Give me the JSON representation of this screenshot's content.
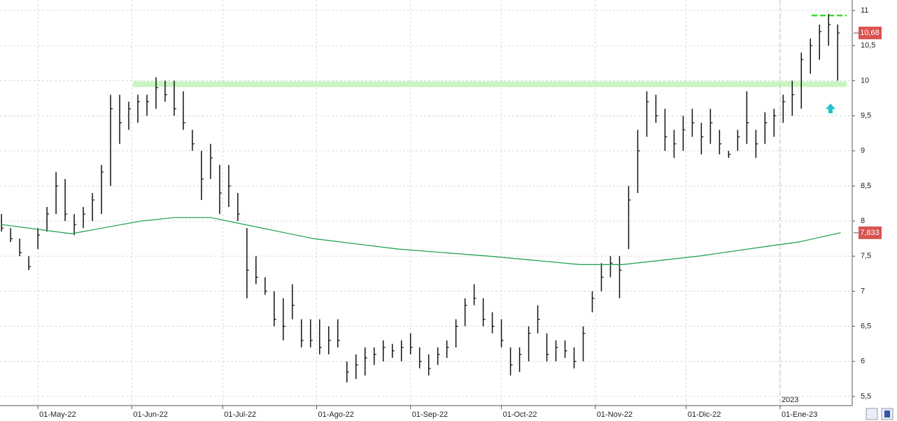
{
  "chart_data": {
    "type": "ohlc",
    "series": [
      {
        "color": "#111111",
        "x": [
          -12,
          -9,
          -6,
          -3,
          0,
          3,
          6,
          9,
          12,
          15,
          18,
          21,
          24,
          27,
          30,
          33,
          36,
          39,
          42,
          45,
          48,
          51,
          54,
          57,
          60,
          63,
          66,
          69,
          72,
          75,
          78,
          81,
          84,
          87,
          90,
          93,
          96,
          99,
          102,
          105,
          108,
          111,
          114,
          117,
          120,
          123,
          126,
          129,
          132,
          135,
          138,
          141,
          144,
          147,
          150,
          153,
          156,
          159,
          162,
          165,
          168,
          171,
          174,
          177,
          180,
          183,
          186,
          189,
          192,
          195,
          198,
          201,
          204,
          207,
          210,
          213,
          216,
          219,
          222,
          225,
          228,
          231,
          234,
          237,
          240,
          243,
          246,
          249,
          252,
          255,
          258,
          261,
          264
        ],
        "high": [
          8.1,
          7.9,
          7.75,
          7.5,
          7.9,
          8.2,
          8.7,
          8.6,
          8.1,
          8.2,
          8.4,
          8.8,
          9.8,
          9.8,
          9.7,
          9.8,
          9.8,
          10.05,
          10.0,
          10.0,
          9.85,
          9.3,
          9.0,
          9.1,
          8.8,
          8.8,
          8.4,
          7.9,
          7.5,
          7.2,
          7.0,
          6.9,
          7.1,
          6.6,
          6.6,
          6.6,
          6.5,
          6.6,
          6.0,
          6.1,
          6.2,
          6.2,
          6.3,
          6.25,
          6.3,
          6.4,
          6.2,
          6.1,
          6.2,
          6.3,
          6.6,
          6.9,
          7.1,
          6.9,
          6.7,
          6.6,
          6.2,
          6.2,
          6.5,
          6.8,
          6.4,
          6.3,
          6.3,
          6.2,
          6.5,
          7.0,
          7.4,
          7.5,
          7.5,
          8.5,
          9.3,
          9.85,
          9.8,
          9.6,
          9.3,
          9.5,
          9.6,
          9.4,
          9.6,
          9.3,
          9.0,
          9.3,
          9.85,
          9.3,
          9.55,
          9.6,
          9.8,
          10.0,
          10.4,
          10.6,
          10.8,
          10.95,
          10.8
        ],
        "low": [
          7.85,
          7.7,
          7.5,
          7.3,
          7.6,
          7.85,
          8.1,
          8.0,
          7.8,
          7.9,
          8.0,
          8.1,
          8.5,
          9.1,
          9.3,
          9.4,
          9.5,
          9.6,
          9.7,
          9.5,
          9.3,
          9.0,
          8.3,
          8.6,
          8.1,
          8.2,
          8.0,
          6.9,
          7.1,
          6.95,
          6.5,
          6.3,
          6.6,
          6.2,
          6.2,
          6.1,
          6.1,
          6.2,
          5.7,
          5.75,
          5.8,
          5.95,
          6.0,
          6.05,
          6.0,
          6.1,
          5.9,
          5.8,
          5.95,
          6.05,
          6.2,
          6.5,
          6.8,
          6.5,
          6.4,
          6.2,
          5.8,
          5.85,
          6.0,
          6.4,
          6.0,
          6.0,
          6.05,
          5.9,
          6.0,
          6.7,
          7.0,
          7.2,
          6.9,
          7.6,
          8.4,
          9.2,
          9.4,
          9.0,
          8.9,
          9.0,
          9.2,
          8.95,
          9.1,
          8.95,
          8.9,
          9.0,
          9.1,
          8.9,
          9.1,
          9.2,
          9.4,
          9.5,
          9.6,
          10.1,
          10.3,
          10.5,
          10.0
        ],
        "close": [
          7.9,
          7.75,
          7.55,
          7.35,
          7.8,
          8.1,
          8.5,
          8.1,
          7.95,
          8.1,
          8.3,
          8.7,
          9.6,
          9.4,
          9.6,
          9.7,
          9.7,
          9.9,
          9.8,
          9.6,
          9.4,
          9.1,
          8.6,
          8.9,
          8.4,
          8.5,
          8.1,
          7.3,
          7.2,
          7.0,
          6.6,
          6.5,
          6.8,
          6.3,
          6.3,
          6.2,
          6.3,
          6.3,
          5.85,
          5.95,
          6.05,
          6.1,
          6.2,
          6.15,
          6.2,
          6.2,
          6.0,
          5.9,
          6.1,
          6.2,
          6.5,
          6.8,
          6.9,
          6.6,
          6.5,
          6.3,
          5.95,
          6.1,
          6.4,
          6.6,
          6.1,
          6.2,
          6.15,
          6.0,
          6.4,
          6.9,
          7.2,
          7.4,
          7.3,
          8.3,
          9.0,
          9.7,
          9.5,
          9.2,
          9.1,
          9.3,
          9.4,
          9.2,
          9.4,
          9.1,
          8.95,
          9.2,
          9.4,
          9.1,
          9.4,
          9.5,
          9.7,
          9.8,
          10.3,
          10.5,
          10.7,
          10.8,
          10.68
        ]
      },
      {
        "color": "#2aa455",
        "x": [
          -12,
          11,
          34,
          45,
          57,
          91,
          119,
          149,
          179,
          193,
          218,
          244,
          251,
          265
        ],
        "values": [
          7.95,
          7.82,
          8.0,
          8.05,
          8.05,
          7.75,
          7.6,
          7.5,
          7.38,
          7.38,
          7.5,
          7.66,
          7.7,
          7.833
        ]
      }
    ],
    "xlim": [
      -12.5,
      268.8
    ],
    "xticks": [
      {
        "value": 0,
        "label": "01-May-22"
      },
      {
        "value": 31,
        "label": "01-Jun-22"
      },
      {
        "value": 61,
        "label": "01-Jul-22"
      },
      {
        "value": 92,
        "label": "01-Ago-22"
      },
      {
        "value": 123,
        "label": "01-Sep-22"
      },
      {
        "value": 153,
        "label": "01-Oct-22"
      },
      {
        "value": 184,
        "label": "01-Nov-22"
      },
      {
        "value": 214,
        "label": "01-Dic-22"
      },
      {
        "value": 245,
        "label": "01-Ene-23"
      }
    ],
    "ylim": [
      5.37,
      11.15
    ],
    "yticks": [
      {
        "value": 5.5,
        "label": "5,5"
      },
      6,
      {
        "value": 6.5,
        "label": "6,5"
      },
      7,
      {
        "value": 7.5,
        "label": "7,5"
      },
      8,
      {
        "value": 8.5,
        "label": "8,5"
      },
      9,
      {
        "value": 9.5,
        "label": "9,5"
      },
      10,
      {
        "value": 10.5,
        "label": "10,5"
      },
      11
    ],
    "grid": true,
    "resistance": {
      "value": 9.95,
      "color": "#c8f5c0"
    },
    "high_line": {
      "value": 10.93,
      "color": "#33dd22"
    },
    "year_marker": {
      "value": 245,
      "label": "2023"
    },
    "last_price": {
      "value": 10.68,
      "label": "10,68",
      "color": "#d9534f"
    },
    "ma_price": {
      "value": 7.833,
      "label": "7,833",
      "color": "#d9534f"
    }
  }
}
